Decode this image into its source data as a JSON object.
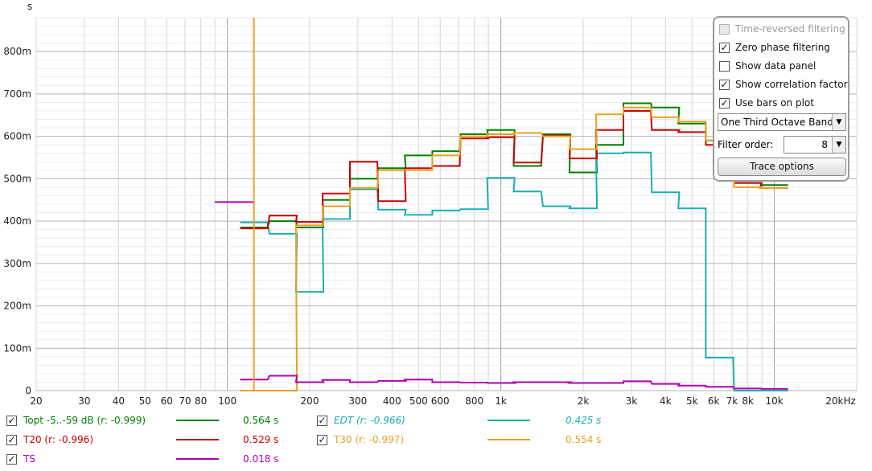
{
  "chart_data": {
    "type": "line",
    "x_scale": "log",
    "xlim": [
      20,
      20000
    ],
    "ylim": [
      0,
      0.88
    ],
    "y_unit_label": "s",
    "x_tick_labels": [
      {
        "v": 20,
        "t": "20"
      },
      {
        "v": 30,
        "t": "30"
      },
      {
        "v": 40,
        "t": "40"
      },
      {
        "v": 50,
        "t": "50"
      },
      {
        "v": 60,
        "t": "60"
      },
      {
        "v": 70,
        "t": "70"
      },
      {
        "v": 80,
        "t": "80"
      },
      {
        "v": 100,
        "t": "100"
      },
      {
        "v": 200,
        "t": "200"
      },
      {
        "v": 300,
        "t": "300"
      },
      {
        "v": 400,
        "t": "400"
      },
      {
        "v": 500,
        "t": "500"
      },
      {
        "v": 600,
        "t": "600"
      },
      {
        "v": 800,
        "t": "800"
      },
      {
        "v": 1000,
        "t": "1k"
      },
      {
        "v": 2000,
        "t": "2k"
      },
      {
        "v": 3000,
        "t": "3k"
      },
      {
        "v": 4000,
        "t": "4k"
      },
      {
        "v": 5000,
        "t": "5k"
      },
      {
        "v": 6000,
        "t": "6k"
      },
      {
        "v": 7000,
        "t": "7k"
      },
      {
        "v": 8000,
        "t": "8k"
      },
      {
        "v": 10000,
        "t": "10k"
      },
      {
        "v": 20000,
        "t": "20kHz"
      }
    ],
    "y_tick_labels": [
      {
        "v": 0,
        "t": "0"
      },
      {
        "v": 0.1,
        "t": "100m"
      },
      {
        "v": 0.2,
        "t": "200m"
      },
      {
        "v": 0.3,
        "t": "300m"
      },
      {
        "v": 0.4,
        "t": "400m"
      },
      {
        "v": 0.5,
        "t": "500m"
      },
      {
        "v": 0.6,
        "t": "600m"
      },
      {
        "v": 0.7,
        "t": "700m"
      },
      {
        "v": 0.8,
        "t": "800m"
      }
    ],
    "band_centers": [
      125,
      160,
      200,
      250,
      315,
      400,
      500,
      630,
      800,
      1000,
      1250,
      1600,
      2000,
      2500,
      3150,
      4000,
      5000,
      6300,
      8000,
      10000
    ],
    "series": [
      {
        "name": "Topt -5..-59 dB (r: -0.999)",
        "color": "#008000",
        "values": [
          0.385,
          0.4,
          0.385,
          0.45,
          0.5,
          0.525,
          0.555,
          0.565,
          0.605,
          0.615,
          0.53,
          0.605,
          0.515,
          0.58,
          0.678,
          0.668,
          0.63,
          0.59,
          0.49,
          0.485
        ]
      },
      {
        "name": "EDT (r: -0.966)",
        "color": "#1ab0b0",
        "values": [
          0.397,
          0.37,
          0.233,
          0.405,
          0.475,
          0.427,
          0.415,
          0.425,
          0.428,
          0.502,
          0.47,
          0.435,
          0.43,
          0.56,
          0.562,
          0.468,
          0.43,
          0.078,
          0.0,
          0.0
        ]
      },
      {
        "name": "T20 (r: -0.996)",
        "color": "#cc0000",
        "values": [
          0.383,
          0.413,
          0.398,
          0.465,
          0.54,
          0.447,
          0.525,
          0.53,
          0.595,
          0.598,
          0.538,
          0.602,
          0.548,
          0.615,
          0.66,
          0.615,
          0.61,
          0.58,
          0.49,
          0.478
        ]
      },
      {
        "name": "T30 (r: -0.997)",
        "color": "#e8a020",
        "values": [
          0.0,
          0.0,
          0.39,
          0.435,
          0.478,
          0.52,
          0.52,
          0.555,
          0.6,
          0.605,
          0.608,
          0.6,
          0.57,
          0.652,
          0.668,
          0.645,
          0.635,
          0.59,
          0.48,
          0.478
        ]
      },
      {
        "name": "TS",
        "color": "#b000b0",
        "values": [
          0.026,
          0.035,
          0.02,
          0.025,
          0.02,
          0.023,
          0.026,
          0.02,
          0.019,
          0.018,
          0.02,
          0.02,
          0.018,
          0.018,
          0.022,
          0.016,
          0.012,
          0.009,
          0.005,
          0.004
        ]
      }
    ],
    "extra_segments": [
      {
        "series": "TS",
        "x": [
          90,
          125
        ],
        "y": [
          0.445,
          0.445
        ]
      },
      {
        "series": "T30",
        "x": [
          125,
          125
        ],
        "y": [
          0.0,
          0.88
        ]
      }
    ]
  },
  "panel": {
    "time_reversed": "Time-reversed filtering",
    "zero_phase": "Zero phase filtering",
    "show_data_panel": "Show data panel",
    "show_correlation": "Show correlation factor",
    "use_bars": "Use bars on plot",
    "band_select": "One Third Octave Bands",
    "filter_order_label": "Filter order:",
    "filter_order_value": "8",
    "trace_options": "Trace options"
  },
  "legend": {
    "topt_label": "Topt -5..-59 dB (r: -0.999)",
    "topt_value": "0.564 s",
    "topt_color": "#008000",
    "edt_label": "EDT (r: -0.966)",
    "edt_value": "0.425 s",
    "edt_color": "#1ab0b0",
    "t20_label": "T20 (r: -0.996)",
    "t20_value": "0.529 s",
    "t20_color": "#cc0000",
    "t30_label": "T30 (r: -0.997)",
    "t30_value": "0.554 s",
    "t30_color": "#e8a020",
    "ts_label": "TS",
    "ts_value": "0.018 s",
    "ts_color": "#b000b0"
  }
}
